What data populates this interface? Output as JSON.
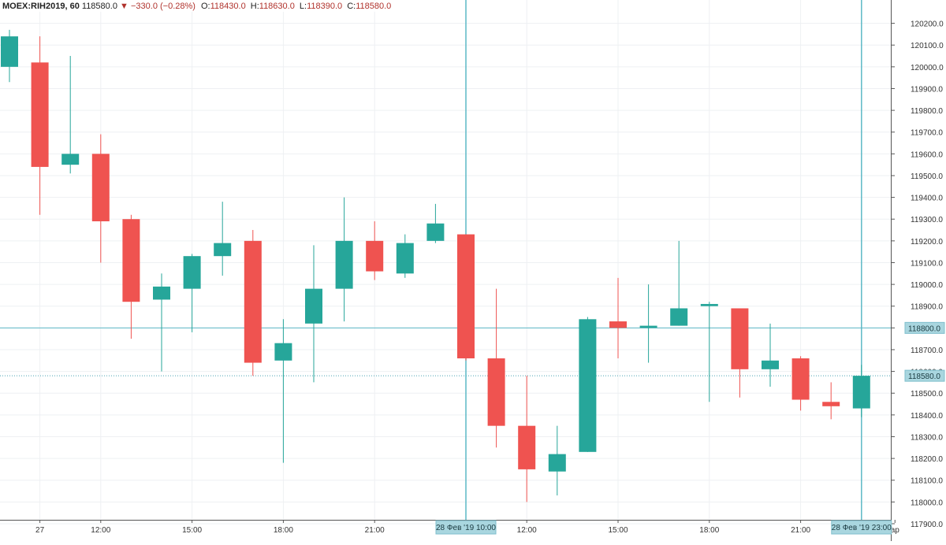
{
  "header": {
    "symbol": "MOEX:RIH2019, 60",
    "last": "118580.0",
    "change": "−330.0 (−0.28%)",
    "open_label": "O:",
    "open": "118430.0",
    "high_label": "H:",
    "high": "118630.0",
    "low_label": "L:",
    "low": "118390.0",
    "close_label": "C:",
    "close": "118580.0"
  },
  "colors": {
    "up": "#26a69a",
    "down": "#ef5350",
    "grid": "#eef0f3",
    "crosshair": "#5cb8c6",
    "price_line": "#4aa3b3",
    "axis_text": "#333333",
    "label_bg": "#a9d6df"
  },
  "chart_data": {
    "type": "candlestick",
    "interval": "60",
    "ylim": [
      117880,
      120280
    ],
    "y_ticks": [
      117900,
      118000,
      118100,
      118200,
      118300,
      118400,
      118500,
      118600,
      118700,
      118800,
      118900,
      119000,
      119100,
      119200,
      119300,
      119400,
      119500,
      119600,
      119700,
      119800,
      119900,
      120000,
      120100,
      120200
    ],
    "y_tick_labels": [
      "117900.0",
      "118000.0",
      "118100.0",
      "118200.0",
      "118300.0",
      "118400.0",
      "118500.0",
      "118600.0",
      "118700.0",
      "118800.0",
      "118900.0",
      "119000.0",
      "119100.0",
      "119200.0",
      "119300.0",
      "119400.0",
      "119500.0",
      "119600.0",
      "119700.0",
      "119800.0",
      "119900.0",
      "120000.0",
      "120100.0",
      "120200.0"
    ],
    "x_ticks": [
      {
        "index": 1,
        "label": "27"
      },
      {
        "index": 3,
        "label": "12:00"
      },
      {
        "index": 6,
        "label": "15:00"
      },
      {
        "index": 9,
        "label": "18:00"
      },
      {
        "index": 12,
        "label": "21:00"
      },
      {
        "index": 17,
        "label": "12:00"
      },
      {
        "index": 20,
        "label": "15:00"
      },
      {
        "index": 23,
        "label": "18:00"
      },
      {
        "index": 26,
        "label": "21:00"
      },
      {
        "index": 29.1,
        "label": "ар"
      }
    ],
    "candles": [
      {
        "o": 120000,
        "h": 120170,
        "l": 119930,
        "c": 120140
      },
      {
        "o": 120020,
        "h": 120140,
        "l": 119320,
        "c": 119540
      },
      {
        "o": 119550,
        "h": 120050,
        "l": 119510,
        "c": 119600
      },
      {
        "o": 119600,
        "h": 119690,
        "l": 119100,
        "c": 119290
      },
      {
        "o": 119300,
        "h": 119320,
        "l": 118750,
        "c": 118920
      },
      {
        "o": 118930,
        "h": 119050,
        "l": 118600,
        "c": 118990
      },
      {
        "o": 118980,
        "h": 119140,
        "l": 118780,
        "c": 119130
      },
      {
        "o": 119130,
        "h": 119380,
        "l": 119040,
        "c": 119190
      },
      {
        "o": 119200,
        "h": 119250,
        "l": 118580,
        "c": 118640
      },
      {
        "o": 118650,
        "h": 118840,
        "l": 118180,
        "c": 118730
      },
      {
        "o": 118820,
        "h": 119180,
        "l": 118550,
        "c": 118980
      },
      {
        "o": 118980,
        "h": 119400,
        "l": 118830,
        "c": 119200
      },
      {
        "o": 119200,
        "h": 119290,
        "l": 119020,
        "c": 119060
      },
      {
        "o": 119050,
        "h": 119230,
        "l": 119030,
        "c": 119190
      },
      {
        "o": 119200,
        "h": 119370,
        "l": 119190,
        "c": 119280
      },
      {
        "o": 119230,
        "h": 119230,
        "l": 118650,
        "c": 118660
      },
      {
        "o": 118660,
        "h": 118980,
        "l": 118250,
        "c": 118350
      },
      {
        "o": 118350,
        "h": 118580,
        "l": 118000,
        "c": 118150
      },
      {
        "o": 118140,
        "h": 118350,
        "l": 118030,
        "c": 118220
      },
      {
        "o": 118230,
        "h": 118850,
        "l": 118230,
        "c": 118840
      },
      {
        "o": 118830,
        "h": 119030,
        "l": 118660,
        "c": 118800
      },
      {
        "o": 118800,
        "h": 119000,
        "l": 118640,
        "c": 118810
      },
      {
        "o": 118810,
        "h": 119200,
        "l": 118810,
        "c": 118890
      },
      {
        "o": 118900,
        "h": 118920,
        "l": 118460,
        "c": 118910
      },
      {
        "o": 118890,
        "h": 118890,
        "l": 118480,
        "c": 118610
      },
      {
        "o": 118610,
        "h": 118820,
        "l": 118530,
        "c": 118650
      },
      {
        "o": 118660,
        "h": 118670,
        "l": 118420,
        "c": 118470
      },
      {
        "o": 118460,
        "h": 118550,
        "l": 118380,
        "c": 118440
      },
      {
        "o": 118430,
        "h": 118630,
        "l": 118390,
        "c": 118580
      }
    ],
    "crosshairs": [
      {
        "index": 15,
        "label": "28 Фев '19   10:00"
      },
      {
        "index": 28,
        "label": "28 Фев '19   23:00"
      }
    ],
    "horizontal_level": {
      "price": 118800,
      "label": "118800.0"
    },
    "last_price": {
      "price": 118580,
      "label": "118580.0"
    }
  }
}
